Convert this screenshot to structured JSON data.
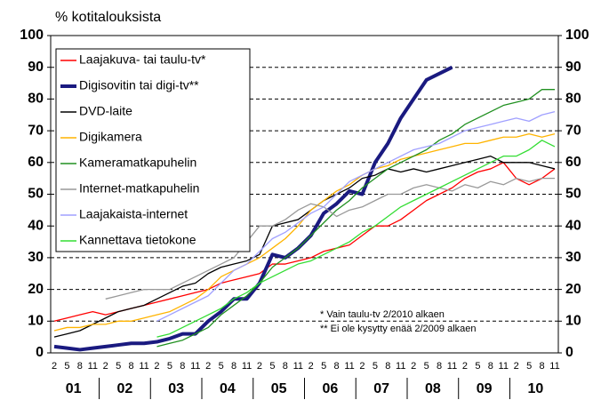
{
  "chart_data": {
    "type": "line",
    "y_label": "% kotitalouksista",
    "categories": [
      "2",
      "5",
      "8",
      "11",
      "2",
      "5",
      "8",
      "11",
      "2",
      "5",
      "8",
      "11",
      "2",
      "5",
      "8",
      "11",
      "2",
      "5",
      "8",
      "11",
      "2",
      "5",
      "8",
      "11",
      "2",
      "5",
      "8",
      "11",
      "2",
      "5",
      "8",
      "11",
      "2",
      "5",
      "8",
      "11",
      "2",
      "5",
      "8",
      "11"
    ],
    "years": [
      "01",
      "02",
      "03",
      "04",
      "05",
      "06",
      "07",
      "08",
      "09",
      "10"
    ],
    "ylim": [
      0,
      100
    ],
    "yticks": [
      0,
      10,
      20,
      30,
      40,
      50,
      60,
      70,
      80,
      90,
      100
    ],
    "y2lim": [
      0,
      100
    ],
    "y2ticks": [
      0,
      10,
      20,
      30,
      40,
      50,
      60,
      70,
      80,
      90,
      100
    ],
    "grid": true,
    "series": [
      {
        "name": "Laajakuva- tai taulu-tv*",
        "color": "#ff0000",
        "values": [
          10,
          11,
          12,
          13,
          12,
          13,
          14,
          15,
          16,
          17,
          18,
          19,
          20,
          22,
          23,
          24,
          25,
          28,
          28,
          29,
          30,
          32,
          33,
          34,
          37,
          40,
          40,
          42,
          45,
          48,
          50,
          52,
          55,
          57,
          58,
          60,
          55,
          53,
          55,
          58
        ]
      },
      {
        "name": "Digisovitin tai digi-tv**",
        "color": "#1a1a80",
        "values": [
          2,
          1.5,
          1,
          1.5,
          2,
          2.5,
          3,
          3,
          3.5,
          4.5,
          6,
          6,
          10,
          13,
          17,
          17,
          22,
          31,
          30,
          33,
          37,
          44,
          47,
          51,
          50,
          60,
          66,
          74,
          80,
          86,
          88,
          90,
          null,
          null,
          null,
          null,
          null,
          null,
          null,
          null
        ]
      },
      {
        "name": "DVD-laite",
        "color": "#000000",
        "values": [
          5,
          6,
          7,
          9,
          11,
          13,
          14,
          15,
          17,
          19,
          21,
          22,
          25,
          27,
          28,
          29,
          31,
          40,
          41,
          42,
          45,
          48,
          50,
          52,
          55,
          56,
          58,
          57,
          58,
          57,
          58,
          59,
          60,
          61,
          62,
          60,
          60,
          60,
          59,
          58
        ]
      },
      {
        "name": "Digikamera",
        "color": "#ffb400",
        "values": [
          7,
          8,
          8,
          9,
          9,
          10,
          10,
          11,
          12,
          13,
          15,
          17,
          20,
          24,
          26,
          28,
          30,
          33,
          36,
          40,
          45,
          48,
          51,
          53,
          56,
          58,
          59,
          61,
          62,
          63,
          64,
          65,
          66,
          66,
          67,
          68,
          68,
          69,
          68,
          69
        ]
      },
      {
        "name": "Kameramatkapuhelin",
        "color": "#209020",
        "values": [
          null,
          null,
          null,
          null,
          null,
          null,
          null,
          null,
          2,
          3,
          4,
          6,
          8,
          12,
          15,
          18,
          22,
          27,
          30,
          33,
          37,
          41,
          45,
          48,
          52,
          55,
          58,
          60,
          62,
          64,
          67,
          69,
          72,
          74,
          76,
          78,
          79,
          80,
          83,
          83
        ]
      },
      {
        "name": "Internet-matkapuhelin",
        "color": "#999999",
        "values": [
          null,
          null,
          null,
          null,
          17,
          18,
          19,
          20,
          20,
          20,
          22,
          24,
          26,
          28,
          30,
          35,
          40,
          40,
          42,
          45,
          47,
          46,
          43,
          45,
          46,
          48,
          50,
          50,
          52,
          53,
          52,
          51,
          53,
          52,
          54,
          53,
          55,
          54,
          55,
          55
        ]
      },
      {
        "name": "Laajakaista-internet",
        "color": "#a0a0ff",
        "values": [
          null,
          null,
          null,
          null,
          null,
          null,
          null,
          null,
          10,
          12,
          14,
          16,
          18,
          22,
          26,
          28,
          32,
          36,
          38,
          41,
          44,
          46,
          50,
          54,
          56,
          58,
          60,
          62,
          64,
          65,
          66,
          68,
          70,
          71,
          72,
          73,
          74,
          73,
          75,
          76
        ]
      },
      {
        "name": "Kannettava tietokone",
        "color": "#33dd33",
        "values": [
          null,
          null,
          null,
          null,
          null,
          null,
          null,
          null,
          5,
          6,
          8,
          10,
          12,
          14,
          17,
          19,
          22,
          24,
          26,
          28,
          29,
          31,
          33,
          35,
          38,
          40,
          43,
          46,
          48,
          50,
          52,
          54,
          56,
          58,
          60,
          62,
          62,
          64,
          67,
          65
        ]
      }
    ],
    "notes": [
      "* Vain taulu-tv 2/2010 alkaen",
      "** Ei ole kysytty enää 2/2009 alkaen"
    ]
  }
}
